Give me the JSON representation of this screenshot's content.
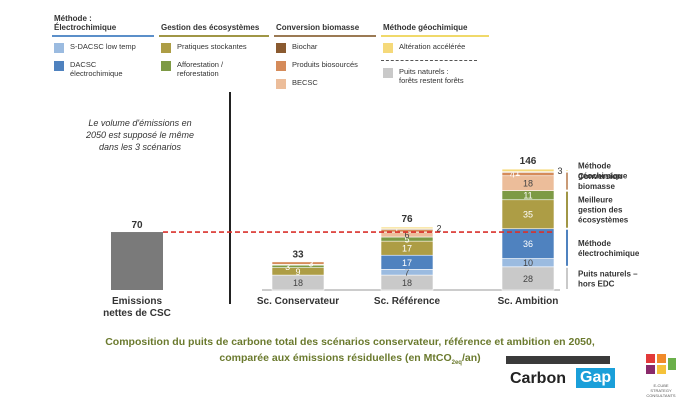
{
  "legend": {
    "groups": [
      {
        "title": "Méthode :\nÉlectrochimique",
        "color": "#5b8fc9",
        "items": [
          {
            "label": "S-DACSC low temp",
            "color": "#9bbbe0"
          },
          {
            "label": "DACSC\nélectrochimique",
            "color": "#4f82bf"
          }
        ]
      },
      {
        "title": "Gestion des écosystèmes",
        "color": "#a09646",
        "items": [
          {
            "label": "Pratiques stockantes",
            "color": "#ad9d45"
          },
          {
            "label": "Afforestation /\nreforestation",
            "color": "#7d9a45"
          }
        ]
      },
      {
        "title": "Conversion biomasse",
        "color": "#9b7a54",
        "items": [
          {
            "label": "Biochar",
            "color": "#8a5a30"
          },
          {
            "label": "Produits biosourcés",
            "color": "#d58b5a"
          },
          {
            "label": "BECSC",
            "color": "#ecbd9a"
          }
        ]
      },
      {
        "title": "Méthode géochimique",
        "color": "#f0d96a",
        "items": [
          {
            "label": "Altération accélérée",
            "color": "#f5d97a"
          },
          {
            "label": "Puits naturels :\nforêts restent forêts",
            "color": "#c9c9c9"
          }
        ]
      }
    ]
  },
  "note": "Le volume d'émissions en\n2050 est supposé le même\ndans les 3 scénarios",
  "side_labels": [
    {
      "text": "Méthode\ngéochimique",
      "color": "#f0d96a"
    },
    {
      "text": "Conversion\nbiomasse",
      "color": "#c99a76"
    },
    {
      "text": "Meilleure\ngestion des\nécosystèmes",
      "color": "#a09646"
    },
    {
      "text": "Méthode\nélectrochimique",
      "color": "#4f82bf"
    },
    {
      "text": "Puits naturels –\nhors EDC",
      "color": "#c9c9c9"
    }
  ],
  "caption": {
    "line1": "Composition du puits de carbone total des scénarios conservateur, référence et ambition en 2050,",
    "line2_pre": "comparée aux émissions résiduelles (en MtCO",
    "line2_sub": "2eq",
    "line2_post": "/an)"
  },
  "logos": {
    "carbon": "Carbon",
    "gap": "Gap",
    "ecube_text": "E-CUBE\nSTRATEGY\nCONSULTANTS"
  },
  "chart_data": {
    "type": "stacked-bar",
    "unit": "MtCO2eq/an",
    "ylim": [
      0,
      150
    ],
    "emissions": {
      "label": "Emissions\nnettes de CSC",
      "value": 70,
      "total_label": "70",
      "color": "#7a7a7a"
    },
    "reference_line": {
      "value": 70,
      "color": "#d9312b",
      "style": "dashed"
    },
    "series_order": [
      "Puits naturels",
      "S-DACSC low temp",
      "DACSC électrochimique",
      "Pratiques stockantes",
      "Afforestation / reforestation",
      "BECSC",
      "Produits biosourcés",
      "Biochar",
      "Altération accélérée"
    ],
    "series_colors": {
      "Puits naturels": "#c9c9c9",
      "S-DACSC low temp": "#9bbbe0",
      "DACSC électrochimique": "#4f82bf",
      "Pratiques stockantes": "#ad9d45",
      "Afforestation / reforestation": "#7d9a45",
      "BECSC": "#ecbd9a",
      "Produits biosourcés": "#d58b5a",
      "Biochar": "#8a5a30",
      "Altération accélérée": "#f5d97a"
    },
    "scenarios": [
      {
        "label": "Sc. Conservateur",
        "total": 33,
        "values": [
          18,
          0,
          0,
          9,
          3,
          1,
          3,
          0,
          0
        ],
        "labels": [
          "18",
          "",
          "",
          "9",
          "3",
          "",
          "3",
          "",
          ""
        ]
      },
      {
        "label": "Sc. Référence",
        "total": 76,
        "values": [
          18,
          7,
          17,
          17,
          5,
          6,
          3,
          1,
          2
        ],
        "labels": [
          "18",
          "7",
          "17",
          "17",
          "5",
          "6",
          "",
          "1",
          "2"
        ]
      },
      {
        "label": "Sc. Ambition",
        "total": 146,
        "values": [
          28,
          10,
          36,
          35,
          11,
          18,
          4,
          1,
          3
        ],
        "labels": [
          "28",
          "10",
          "36",
          "35",
          "11",
          "18",
          "4",
          "1",
          "3"
        ]
      }
    ]
  }
}
